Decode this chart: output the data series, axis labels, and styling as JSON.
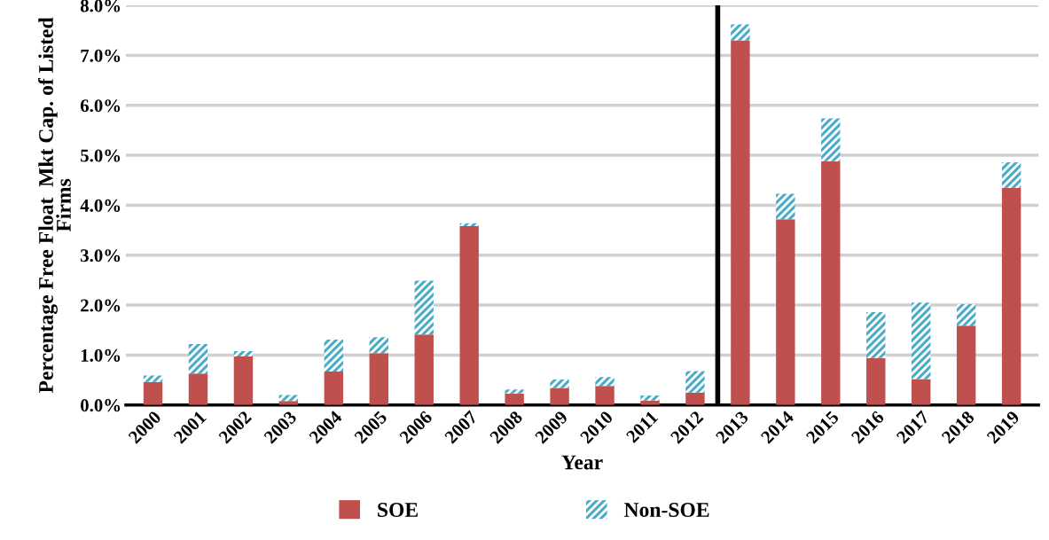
{
  "chart_data": {
    "type": "bar",
    "stacked": true,
    "xlabel": "Year",
    "ylabel": "Percentage Free Float  Mkt Cap. of Listed\nFirms",
    "categories": [
      "2000",
      "2001",
      "2002",
      "2003",
      "2004",
      "2005",
      "2006",
      "2007",
      "2008",
      "2009",
      "2010",
      "2011",
      "2012",
      "2013",
      "2014",
      "2015",
      "2016",
      "2017",
      "2018",
      "2019"
    ],
    "series": [
      {
        "name": "SOE",
        "color": "#c0504d",
        "values": [
          0.46,
          0.63,
          0.97,
          0.08,
          0.67,
          1.04,
          1.41,
          3.58,
          0.23,
          0.34,
          0.38,
          0.09,
          0.25,
          7.3,
          3.72,
          4.88,
          0.94,
          0.52,
          1.59,
          4.35
        ]
      },
      {
        "name": "Non-SOE",
        "color": "#4bacc6",
        "values": [
          0.13,
          0.59,
          0.11,
          0.12,
          0.64,
          0.32,
          1.08,
          0.06,
          0.08,
          0.17,
          0.18,
          0.1,
          0.43,
          0.32,
          0.51,
          0.86,
          0.92,
          1.53,
          0.43,
          0.51
        ]
      }
    ],
    "ylim": [
      0,
      8
    ],
    "yticks": [
      {
        "value": 0,
        "label": "0.0%"
      },
      {
        "value": 1,
        "label": "1.0%"
      },
      {
        "value": 2,
        "label": "2.0%"
      },
      {
        "value": 3,
        "label": "3.0%"
      },
      {
        "value": 4,
        "label": "4.0%"
      },
      {
        "value": 5,
        "label": "5.0%"
      },
      {
        "value": 6,
        "label": "6.0%"
      },
      {
        "value": 7,
        "label": "7.0%"
      },
      {
        "value": 8,
        "label": "8.0%"
      }
    ],
    "grid": "y",
    "legend": "bottom",
    "ref_lines": [
      {
        "axis": "x",
        "value": "2013",
        "color": "#000000"
      }
    ]
  }
}
